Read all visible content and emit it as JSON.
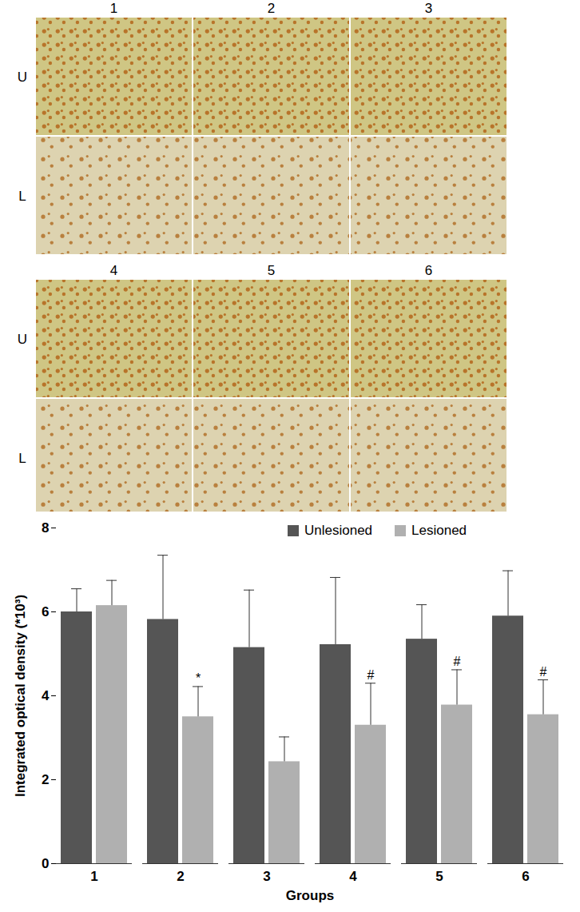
{
  "image_panels": {
    "column_labels": [
      "1",
      "2",
      "3",
      "4",
      "5",
      "6"
    ],
    "row_labels": [
      "U",
      "L"
    ]
  },
  "chart_data": {
    "type": "bar",
    "categories": [
      "1",
      "2",
      "3",
      "4",
      "5",
      "6"
    ],
    "xlabel": "Groups",
    "ylabel": "Integrated optical density (*10³)",
    "ylim": [
      0,
      8
    ],
    "yticks": [
      0,
      2,
      4,
      6,
      8
    ],
    "legend": "top right",
    "series": [
      {
        "name": "Unlesioned",
        "color": "#555555",
        "values": [
          6.0,
          5.82,
          5.15,
          5.22,
          5.35,
          5.9
        ],
        "errors": [
          0.55,
          1.53,
          1.37,
          1.6,
          0.82,
          1.08
        ]
      },
      {
        "name": "Lesioned",
        "color": "#b0b0b0",
        "values": [
          6.15,
          3.5,
          2.43,
          3.3,
          3.78,
          3.55
        ],
        "errors": [
          0.6,
          0.72,
          0.59,
          1.0,
          0.84,
          0.83
        ],
        "annotations": [
          null,
          "*",
          null,
          "#",
          "#",
          "#"
        ]
      }
    ]
  }
}
